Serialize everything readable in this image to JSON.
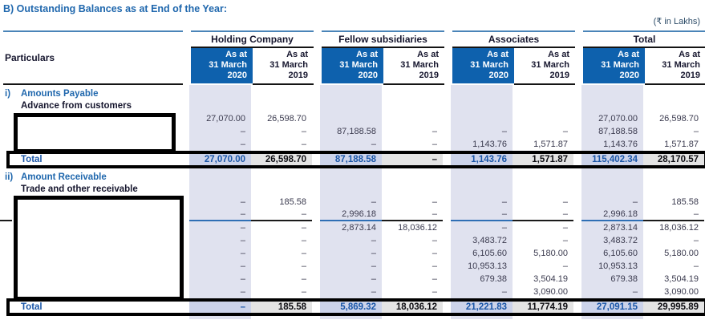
{
  "title": "B) Outstanding Balances as at End of the Year:",
  "unit_note": "(₹ in Lakhs)",
  "table": {
    "particulars_header": "Particulars",
    "groups": [
      "Holding Company",
      "Fellow subsidiaries",
      "Associates",
      "Total"
    ],
    "col_2020": "As at\n31 March\n2020",
    "col_2019": "As at\n31 March\n2019",
    "column_order": [
      "holding-2020",
      "holding-2019",
      "fellow-2020",
      "fellow-2019",
      "associates-2020",
      "associates-2019",
      "total-2020",
      "total-2019"
    ]
  },
  "sections": [
    {
      "id": "i",
      "index_label": "i)",
      "heading": "Amounts Payable",
      "subheading": "Advance from customers",
      "redacted_label_box": true,
      "rows": [
        {
          "label_redacted": true,
          "values": [
            "27,070.00",
            "26,598.70",
            "",
            "",
            "",
            "",
            "27,070.00",
            "26,598.70"
          ]
        },
        {
          "label_redacted": true,
          "values": [
            "–",
            "–",
            "87,188.58",
            "–",
            "–",
            "–",
            "87,188.58",
            "–"
          ]
        },
        {
          "label_redacted": true,
          "values": [
            "–",
            "–",
            "–",
            "–",
            "1,143.76",
            "1,571.87",
            "1,143.76",
            "1,571.87"
          ]
        }
      ],
      "total": {
        "label": "Total",
        "values": [
          "27,070.00",
          "26,598.70",
          "87,188.58",
          "–",
          "1,143.76",
          "1,571.87",
          "115,402.34",
          "28,170.57"
        ]
      }
    },
    {
      "id": "ii",
      "index_label": "ii)",
      "heading": "Amount Receivable",
      "subheading": "Trade and other receivable",
      "redacted_label_box": true,
      "rows": [
        {
          "label_redacted": true,
          "values": [
            "–",
            "185.58",
            "–",
            "–",
            "–",
            "–",
            "–",
            "185.58"
          ]
        },
        {
          "label_redacted": true,
          "divider_after": true,
          "values": [
            "–",
            "–",
            "2,996.18",
            "–",
            "–",
            "–",
            "2,996.18",
            "–"
          ]
        },
        {
          "label_redacted": true,
          "values": [
            "–",
            "–",
            "2,873.14",
            "18,036.12",
            "–",
            "–",
            "2,873.14",
            "18,036.12"
          ]
        },
        {
          "label_redacted": true,
          "values": [
            "–",
            "–",
            "–",
            "–",
            "3,483.72",
            "–",
            "3,483.72",
            "–"
          ]
        },
        {
          "label_redacted": true,
          "values": [
            "–",
            "–",
            "–",
            "–",
            "6,105.60",
            "5,180.00",
            "6,105.60",
            "5,180.00"
          ]
        },
        {
          "label_redacted": true,
          "values": [
            "–",
            "–",
            "–",
            "–",
            "10,953.13",
            "–",
            "10,953.13",
            "–"
          ]
        },
        {
          "label_redacted": true,
          "values": [
            "–",
            "–",
            "–",
            "–",
            "679.38",
            "3,504.19",
            "679.38",
            "3,504.19"
          ]
        },
        {
          "label_redacted": true,
          "values": [
            "–",
            "–",
            "–",
            "–",
            "–",
            "3,090.00",
            "–",
            "3,090.00"
          ]
        }
      ],
      "total": {
        "label": "Total",
        "values": [
          "–",
          "185.58",
          "5,869.32",
          "18,036.12",
          "21,221.83",
          "11,774.19",
          "27,091.15",
          "29,995.89"
        ]
      }
    }
  ],
  "colors": {
    "header_blue": "#0e61ad",
    "column_stripe_lavender": "#e0e2ef",
    "total_row_lavender": "#ccd3ea",
    "total_row_gray": "#e4e4e4",
    "heading_blue": "#1f67ad",
    "total_value_blue": "#1a56a8",
    "rule_blue": "#4a84b8",
    "rule_black": "#141414"
  }
}
